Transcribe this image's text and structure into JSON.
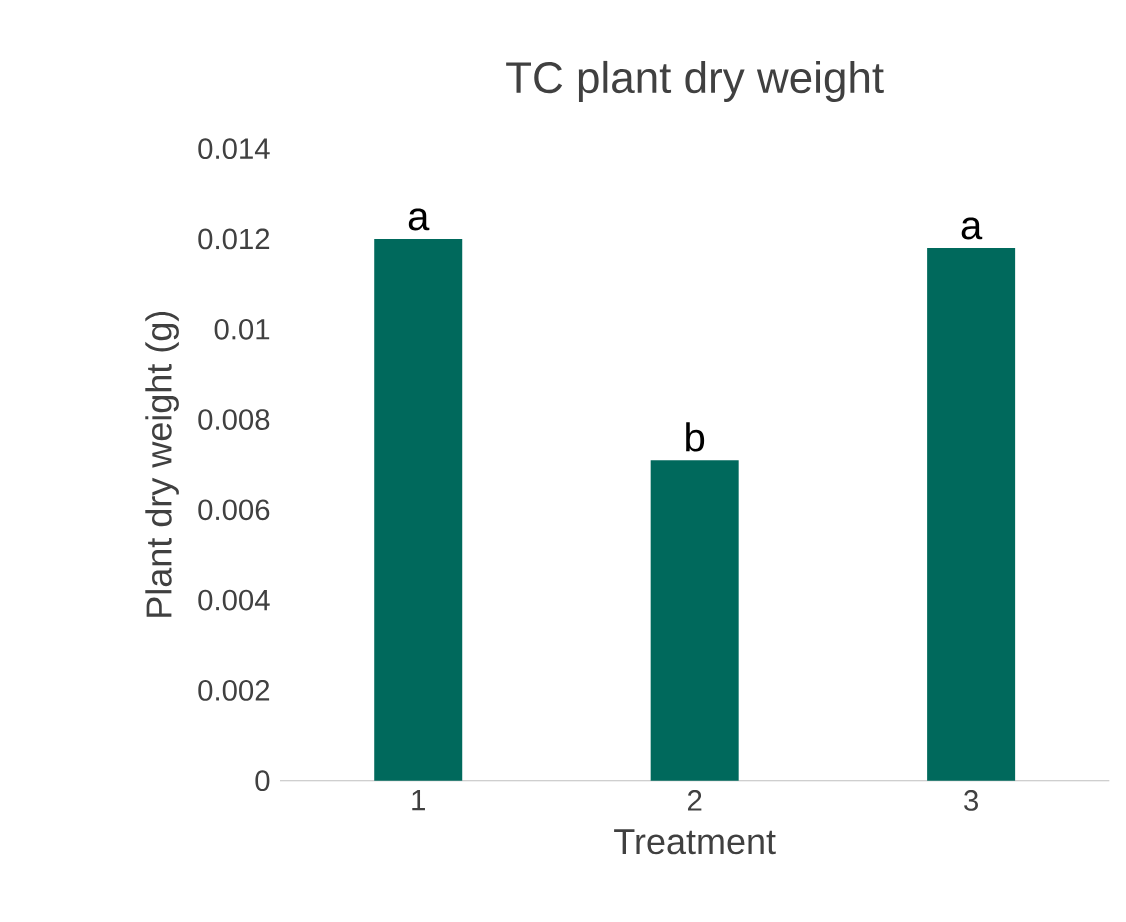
{
  "chart_data": {
    "type": "bar",
    "title": "TC plant dry weight",
    "xlabel": "Treatment",
    "ylabel": "Plant dry weight (g)",
    "categories": [
      "1",
      "2",
      "3"
    ],
    "values": [
      0.012,
      0.0071,
      0.0118
    ],
    "color": "#00695c",
    "ylim": [
      0,
      0.014
    ],
    "yticks": [
      0,
      0.002,
      0.004,
      0.006,
      0.008,
      0.01,
      0.012,
      0.014
    ],
    "grid": false,
    "annotations": [
      {
        "text": "a",
        "x": "1",
        "y": 0.012
      },
      {
        "text": "b",
        "x": "2",
        "y": 0.0071
      },
      {
        "text": "a",
        "x": "3",
        "y": 0.0118
      }
    ]
  }
}
